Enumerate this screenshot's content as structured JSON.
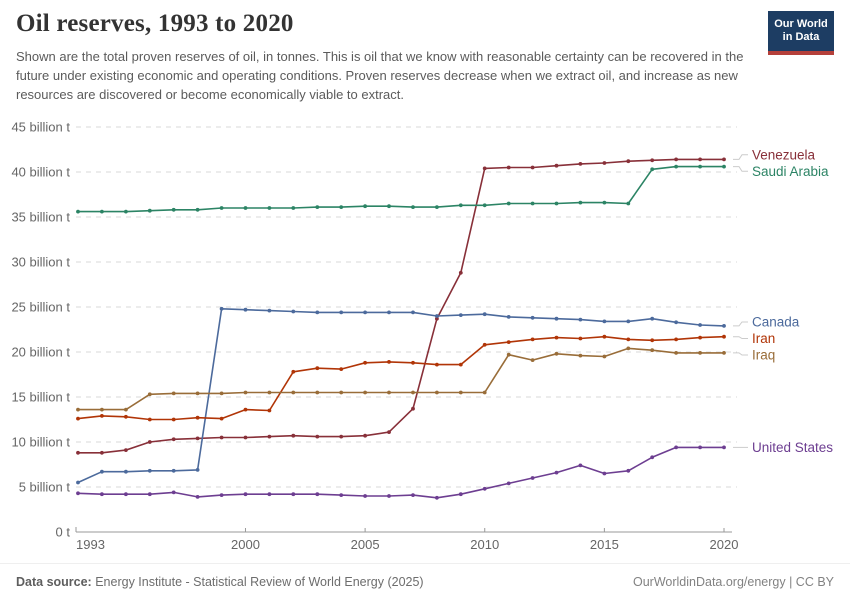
{
  "header": {
    "title": "Oil reserves, 1993 to 2020",
    "subtitle": "Shown are the total proven reserves of oil, in tonnes. This is oil that we know with reasonable certainty can be recovered in the future under existing economic and operating conditions. Proven reserves decrease when we extract oil, and increase as new resources are discovered or become economically viable to extract.",
    "logo": {
      "line1": "Our World",
      "line2": "in Data",
      "bg": "#1d3d63",
      "accent": "#b5403a"
    }
  },
  "chart_data": {
    "type": "line",
    "title": "Oil reserves, 1993 to 2020",
    "unit": "tonnes",
    "x": [
      1993,
      1994,
      1995,
      1996,
      1997,
      1998,
      1999,
      2000,
      2001,
      2002,
      2003,
      2004,
      2005,
      2006,
      2007,
      2008,
      2009,
      2010,
      2011,
      2012,
      2013,
      2014,
      2015,
      2016,
      2017,
      2018,
      2019,
      2020
    ],
    "series": [
      {
        "name": "Venezuela",
        "color": "#883039",
        "values": [
          8.8,
          8.8,
          9.1,
          10.0,
          10.3,
          10.4,
          10.5,
          10.5,
          10.6,
          10.7,
          10.6,
          10.6,
          10.7,
          11.1,
          13.7,
          23.7,
          28.8,
          40.4,
          40.5,
          40.5,
          40.7,
          40.9,
          41.0,
          41.2,
          41.3,
          41.4,
          41.4,
          41.4
        ]
      },
      {
        "name": "Saudi Arabia",
        "color": "#2c8465",
        "values": [
          35.6,
          35.6,
          35.6,
          35.7,
          35.8,
          35.8,
          36.0,
          36.0,
          36.0,
          36.0,
          36.1,
          36.1,
          36.2,
          36.2,
          36.1,
          36.1,
          36.3,
          36.3,
          36.5,
          36.5,
          36.5,
          36.6,
          36.6,
          36.5,
          40.3,
          40.6,
          40.6,
          40.6
        ]
      },
      {
        "name": "Canada",
        "color": "#4c6a9c",
        "values": [
          5.5,
          6.7,
          6.7,
          6.8,
          6.8,
          6.9,
          24.8,
          24.7,
          24.6,
          24.5,
          24.4,
          24.4,
          24.4,
          24.4,
          24.4,
          24.0,
          24.1,
          24.2,
          23.9,
          23.8,
          23.7,
          23.6,
          23.4,
          23.4,
          23.7,
          23.3,
          23.0,
          22.9
        ]
      },
      {
        "name": "Iran",
        "color": "#b13507",
        "values": [
          12.6,
          12.9,
          12.8,
          12.5,
          12.5,
          12.7,
          12.6,
          13.6,
          13.5,
          17.8,
          18.2,
          18.1,
          18.8,
          18.9,
          18.8,
          18.6,
          18.6,
          20.8,
          21.1,
          21.4,
          21.6,
          21.5,
          21.7,
          21.4,
          21.3,
          21.4,
          21.6,
          21.7
        ]
      },
      {
        "name": "Iraq",
        "color": "#996d39",
        "values": [
          13.6,
          13.6,
          13.6,
          15.3,
          15.4,
          15.4,
          15.4,
          15.5,
          15.5,
          15.5,
          15.5,
          15.5,
          15.5,
          15.5,
          15.5,
          15.5,
          15.5,
          15.5,
          19.7,
          19.1,
          19.8,
          19.6,
          19.5,
          20.4,
          20.2,
          19.9,
          19.9,
          19.9
        ]
      },
      {
        "name": "United States",
        "color": "#6d3e91",
        "values": [
          4.3,
          4.2,
          4.2,
          4.2,
          4.4,
          3.9,
          4.1,
          4.2,
          4.2,
          4.2,
          4.2,
          4.1,
          4.0,
          4.0,
          4.1,
          3.8,
          4.2,
          4.8,
          5.4,
          6.0,
          6.6,
          7.4,
          6.5,
          6.8,
          8.3,
          9.4,
          9.4,
          9.4
        ]
      }
    ],
    "ylim": [
      0,
      45
    ],
    "ytick_step": 5,
    "ytick_labels": [
      "0 t",
      "5 billion t",
      "10 billion t",
      "15 billion t",
      "20 billion t",
      "25 billion t",
      "30 billion t",
      "35 billion t",
      "40 billion t",
      "45 billion t"
    ],
    "xticks": [
      1993,
      2000,
      2005,
      2010,
      2015,
      2020
    ],
    "grid": true,
    "legend_position": "right",
    "colors": {
      "grid": "#dadada",
      "axis": "#999999",
      "tick_text": "#666666"
    }
  },
  "footer": {
    "source_label": "Data source:",
    "source_text": " Energy Institute - Statistical Review of World Energy (2025)",
    "credit": "OurWorldinData.org/energy | CC BY"
  }
}
